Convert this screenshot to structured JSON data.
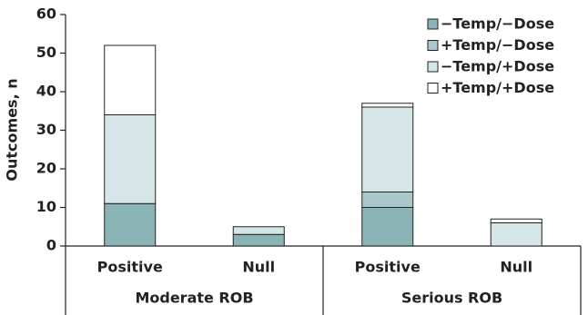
{
  "chart_data": {
    "type": "stacked_bar",
    "y_label": "Outcomes, n",
    "categories": [
      "Positive",
      "Null",
      "Positive",
      "Null"
    ],
    "groups": [
      "Moderate ROB",
      "Serious ROB"
    ],
    "series": [
      {
        "name": "−Temp/−Dose",
        "color": "#8bb4b7",
        "values": [
          11,
          3,
          10,
          0
        ]
      },
      {
        "name": "+Temp/−Dose",
        "color": "#aac8cb",
        "values": [
          0,
          0,
          4,
          0
        ]
      },
      {
        "name": "−Temp/+Dose",
        "color": "#d5e5e8",
        "values": [
          23,
          2,
          22,
          6
        ]
      },
      {
        "name": "+Temp/+Dose",
        "color": "#ffffff",
        "values": [
          18,
          0,
          1,
          1
        ]
      }
    ],
    "ylim": [
      0,
      60
    ],
    "yticks": [
      0,
      10,
      20,
      30,
      40,
      50,
      60
    ],
    "grid": false,
    "legend": "top-right"
  }
}
